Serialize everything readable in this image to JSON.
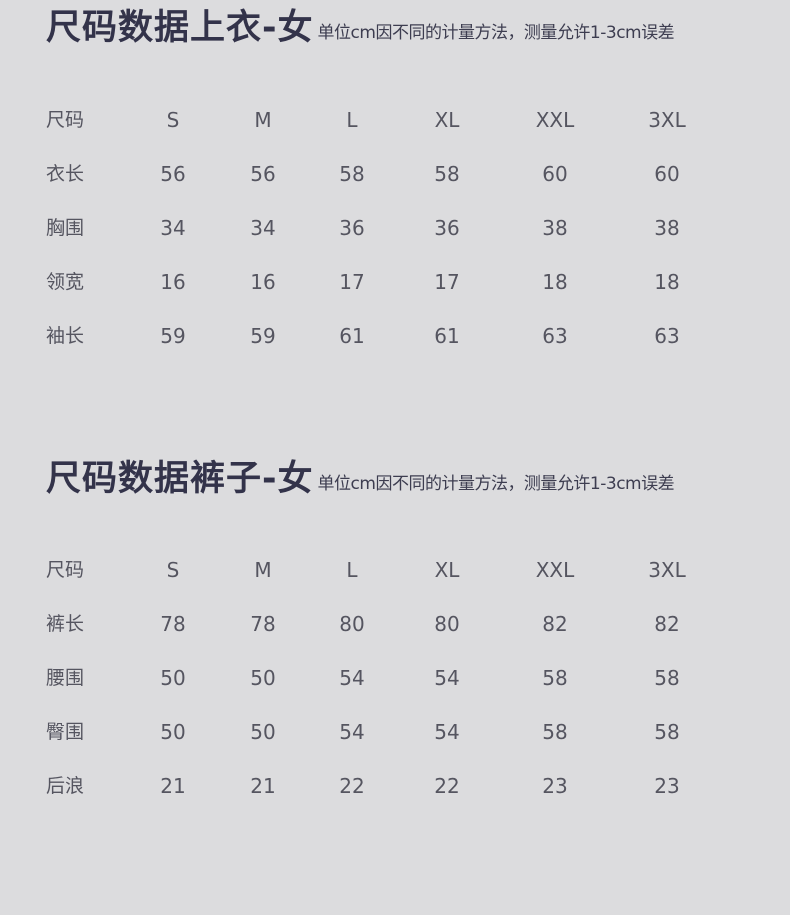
{
  "tables": [
    {
      "title": "尺码数据上衣-女",
      "note": "单位cm因不同的计量方法，测量允许1-3cm误差",
      "header": [
        "尺码",
        "S",
        "M",
        "L",
        "XL",
        "XXL",
        "3XL"
      ],
      "rows": [
        [
          "衣长",
          "56",
          "56",
          "58",
          "58",
          "60",
          "60"
        ],
        [
          "胸围",
          "34",
          "34",
          "36",
          "36",
          "38",
          "38"
        ],
        [
          "领宽",
          "16",
          "16",
          "17",
          "17",
          "18",
          "18"
        ],
        [
          "袖长",
          "59",
          "59",
          "61",
          "61",
          "63",
          "63"
        ]
      ]
    },
    {
      "title": "尺码数据裤子-女",
      "note": "单位cm因不同的计量方法，测量允许1-3cm误差",
      "header": [
        "尺码",
        "S",
        "M",
        "L",
        "XL",
        "XXL",
        "3XL"
      ],
      "rows": [
        [
          "裤长",
          "78",
          "78",
          "80",
          "80",
          "82",
          "82"
        ],
        [
          "腰围",
          "50",
          "50",
          "54",
          "54",
          "58",
          "58"
        ],
        [
          "臀围",
          "50",
          "50",
          "54",
          "54",
          "58",
          "58"
        ],
        [
          "后浪",
          "21",
          "21",
          "22",
          "22",
          "23",
          "23"
        ]
      ]
    }
  ]
}
